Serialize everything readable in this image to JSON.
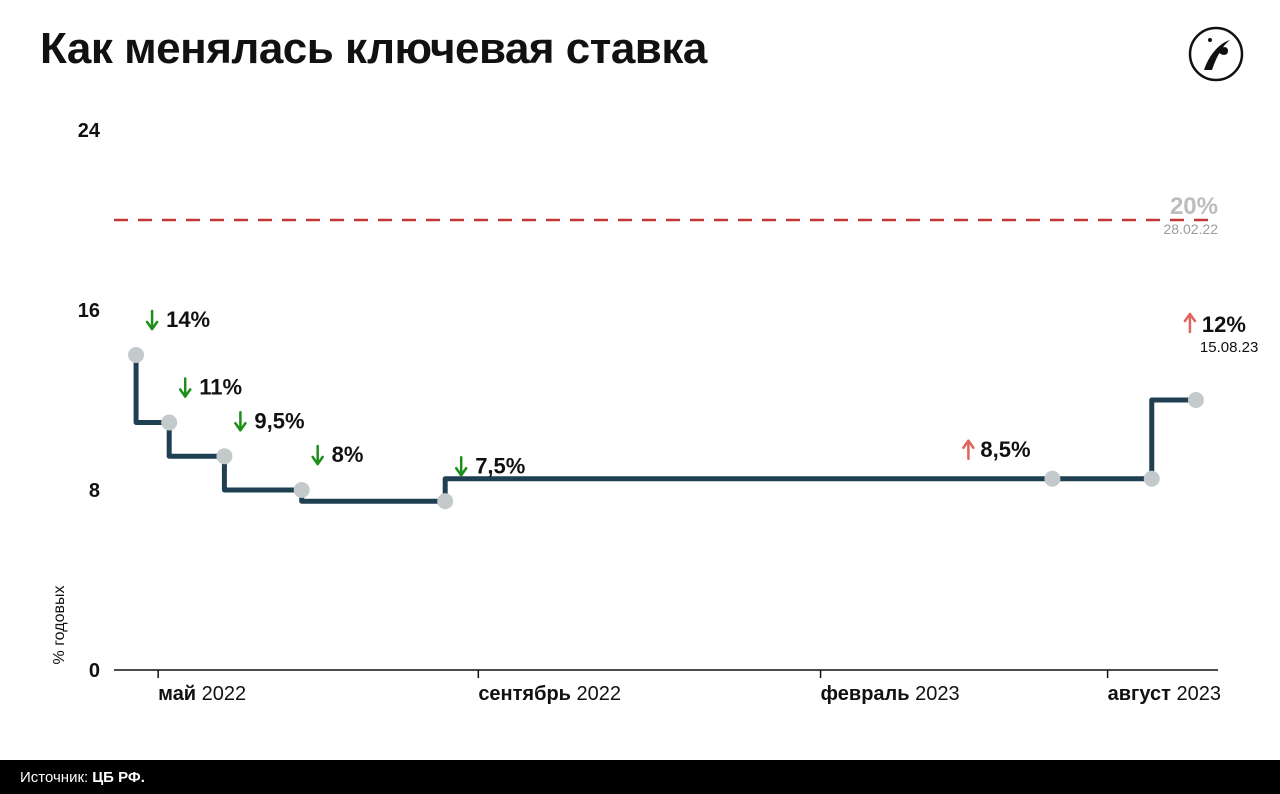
{
  "title": "Как менялась ключевая ставка",
  "logo": {
    "color": "#111111",
    "border_color": "#111111"
  },
  "footer": {
    "label": "Источник:",
    "value": "ЦБ РФ."
  },
  "y_axis": {
    "label": "% годовых",
    "min": 0,
    "max": 24,
    "ticks": [
      0,
      8,
      16,
      24
    ],
    "tick_fontsize": 20
  },
  "x_axis": {
    "min": 0,
    "max": 100,
    "ticks": [
      {
        "pos": 4,
        "bold": "май",
        "light": "2022"
      },
      {
        "pos": 33,
        "bold": "сентябрь",
        "light": "2022"
      },
      {
        "pos": 64,
        "bold": "февраль",
        "light": "2023"
      },
      {
        "pos": 90,
        "bold": "август",
        "light": "2023"
      }
    ]
  },
  "style": {
    "line_color": "#1f3f52",
    "line_width": 5,
    "marker_fill": "#c4c9cc",
    "marker_radius": 8,
    "marker_stroke": "#c4c9cc",
    "bg_color": "#ffffff",
    "down_color": "#1c8f1a",
    "up_color": "#e0645c",
    "ref_line_color": "#c23838",
    "ref_line_dash": "14 10",
    "ref_line_width": 2.5
  },
  "reference_line": {
    "value": 20,
    "label": "20%",
    "date": "28.02.22"
  },
  "series": {
    "type": "step",
    "points": [
      {
        "x": 2,
        "y": 14,
        "marker": true,
        "label": "14%",
        "dir": "down"
      },
      {
        "x": 5,
        "y": 11,
        "marker": true,
        "label": "11%",
        "dir": "down"
      },
      {
        "x": 10,
        "y": 9.5,
        "marker": true,
        "label": "9,5%",
        "dir": "down"
      },
      {
        "x": 17,
        "y": 8.0,
        "marker": true,
        "label": "8%",
        "dir": "down"
      },
      {
        "x": 30,
        "y": 7.5,
        "marker": true,
        "label": "7,5%",
        "dir": "down"
      },
      {
        "x": 85,
        "y": 8.5,
        "marker": true,
        "label": "8,5%",
        "dir": "up"
      },
      {
        "x": 94,
        "y": 8.5,
        "marker": true,
        "label": null,
        "dir": null
      },
      {
        "x": 98,
        "y": 12,
        "marker": true,
        "label": "12%",
        "dir": "up",
        "date": "15.08.23"
      }
    ]
  }
}
